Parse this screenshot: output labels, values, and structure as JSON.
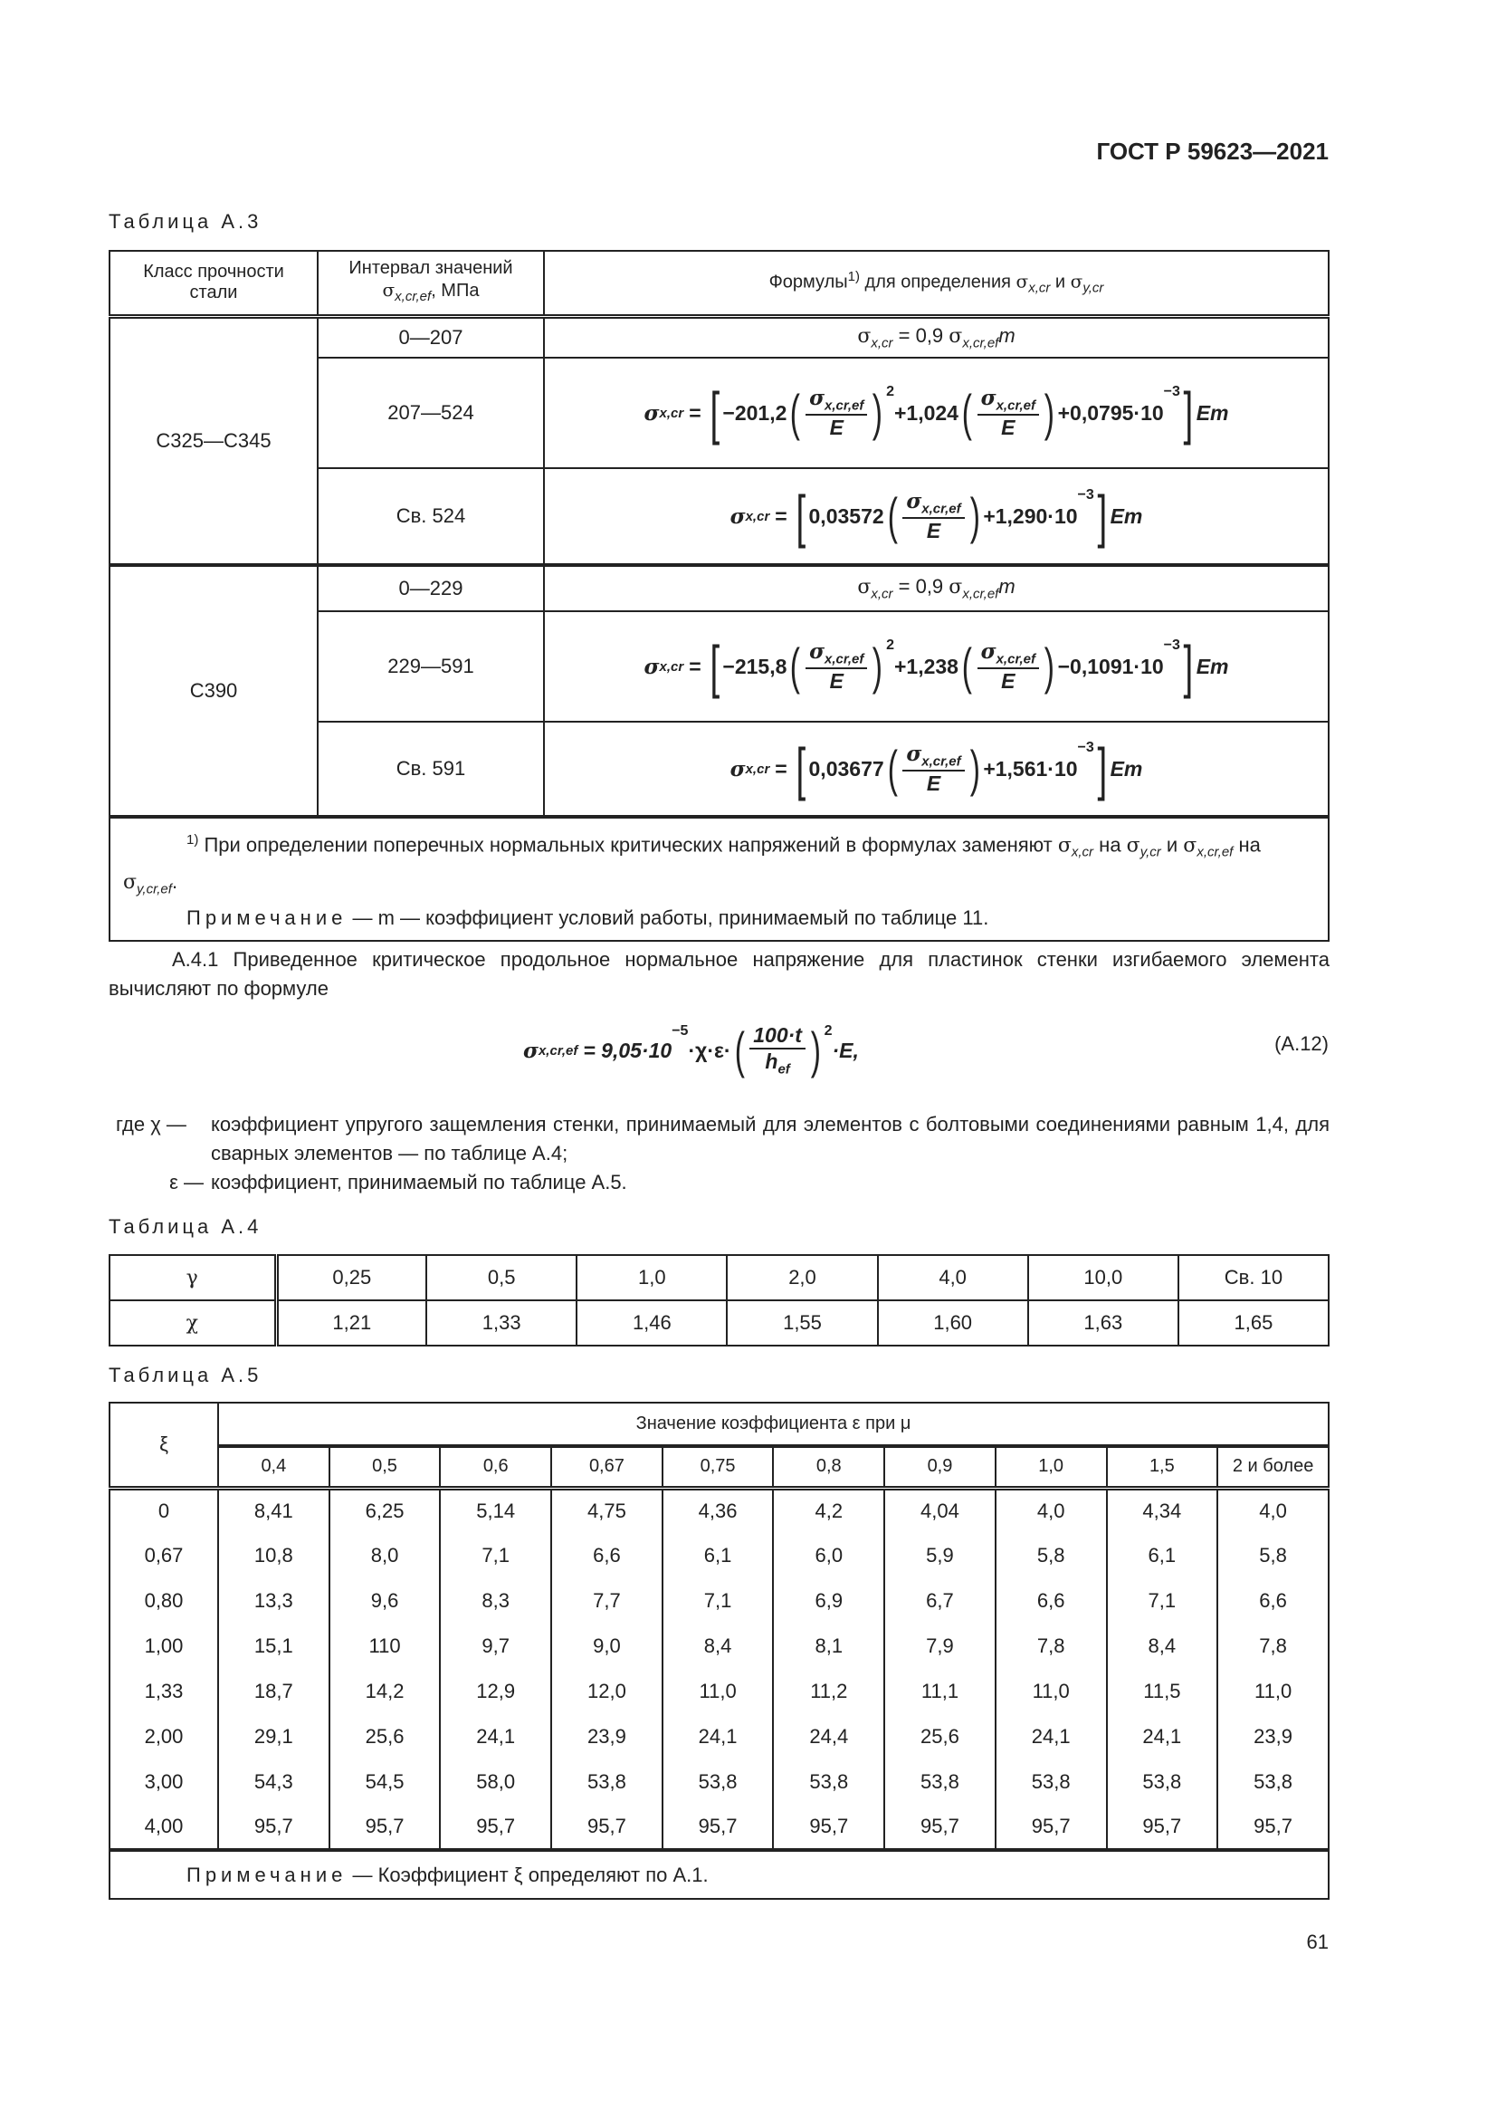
{
  "header": {
    "doc_code": "ГОСТ Р 59623—2021"
  },
  "table_a3": {
    "label": "Таблица А.3",
    "headers": {
      "col1": "Класс прочности стали",
      "col2_text": "Интервал значений",
      "col2_sym": "σ",
      "col2_sub": "x,cr,ef",
      "col2_unit": ", МПа",
      "col3_text": "Формулы",
      "col3_sup": "1)",
      "col3_mid": " для определения ",
      "col3_sym1_sub": "x,cr",
      "col3_and": " и ",
      "col3_sym2_sub": "y,cr"
    },
    "groups": [
      {
        "class": "С325—С345",
        "rows": [
          {
            "interval": "0—207",
            "formula": {
              "type": "simple",
              "text1": " = 0,9 ",
              "sub1": "x,cr",
              "sub2": "x,cr,ef",
              "tail": "m"
            }
          },
          {
            "interval": "207—524",
            "formula": {
              "type": "quad",
              "c1": "−201,2",
              "c2": "+1,024",
              "c3": "+0,0795·10",
              "exp": "−3",
              "tail": "Em"
            }
          },
          {
            "interval": "Св. 524",
            "formula": {
              "type": "lin",
              "c1": "0,03572",
              "c2": "+1,290·10",
              "exp": "−3",
              "tail": "Em"
            }
          }
        ]
      },
      {
        "class": "С390",
        "rows": [
          {
            "interval": "0—229",
            "formula": {
              "type": "simple",
              "text1": " = 0,9 ",
              "sub1": "x,cr",
              "sub2": "x,cr,ef",
              "tail": "m"
            }
          },
          {
            "interval": "229—591",
            "formula": {
              "type": "quad",
              "c1": "−215,8",
              "c2": "+1,238",
              "c3": "−0,1091·10",
              "exp": "−3",
              "tail": "Em"
            }
          },
          {
            "interval": "Св. 591",
            "formula": {
              "type": "lin",
              "c1": "0,03677",
              "c2": "+1,561·10",
              "exp": "−3",
              "tail": "Em"
            }
          }
        ]
      }
    ],
    "formula_common": {
      "sigma": "σ",
      "lhs_sub": "x,cr",
      "frac_sub": "x,cr,ef",
      "den": "E",
      "sq": "2",
      "eq": "="
    },
    "footnote": {
      "mark": "1)",
      "t1": " При определении поперечных нормальных критических напряжений в формулах заменяют ",
      "s1": "x,cr",
      "t2": " на ",
      "s2": "y,cr",
      "t3": " и ",
      "s3": "x,cr,ef",
      "t4": " на ",
      "s4": "y,cr,ef",
      "t5": "."
    },
    "note": {
      "label": "Примечание",
      "text": " — m — коэффициент условий работы, принимаемый по таблице 11."
    }
  },
  "section_a41": {
    "text": "А.4.1 Приведенное критическое продольное нормальное напряжение для пластинок стенки изгибаемого элемента вычисляют по формуле",
    "formula": {
      "lhs_sub": "x,cr,ef",
      "c": "= 9,05·10",
      "exp": "−5",
      "mid": "·χ·ε·",
      "num": "100·t",
      "den": "h",
      "den_sub": "ef",
      "sq": "2",
      "tail": "·E,"
    },
    "formula_number": "(А.12)",
    "where": [
      {
        "prefix": "где χ —",
        "text": "коэффициент упругого защемления стенки, принимаемый для элементов с болтовыми соединениями равным 1,4, для сварных элементов — по таблице А.4;"
      },
      {
        "prefix": "ε —",
        "text": "коэффициент, принимаемый по таблице А.5."
      }
    ]
  },
  "table_a4": {
    "label": "Таблица А.4",
    "rows": [
      {
        "head": "γ",
        "values": [
          "0,25",
          "0,5",
          "1,0",
          "2,0",
          "4,0",
          "10,0",
          "Св. 10"
        ]
      },
      {
        "head": "χ",
        "values": [
          "1,21",
          "1,33",
          "1,46",
          "1,55",
          "1,60",
          "1,63",
          "1,65"
        ]
      }
    ]
  },
  "table_a5": {
    "label": "Таблица А.5",
    "corner": "ξ",
    "group_header": "Значение коэффициента ε при μ",
    "mu": [
      "0,4",
      "0,5",
      "0,6",
      "0,67",
      "0,75",
      "0,8",
      "0,9",
      "1,0",
      "1,5",
      "2 и более"
    ],
    "rows": [
      {
        "xi": "0",
        "values": [
          "8,41",
          "6,25",
          "5,14",
          "4,75",
          "4,36",
          "4,2",
          "4,04",
          "4,0",
          "4,34",
          "4,0"
        ]
      },
      {
        "xi": "0,67",
        "values": [
          "10,8",
          "8,0",
          "7,1",
          "6,6",
          "6,1",
          "6,0",
          "5,9",
          "5,8",
          "6,1",
          "5,8"
        ]
      },
      {
        "xi": "0,80",
        "values": [
          "13,3",
          "9,6",
          "8,3",
          "7,7",
          "7,1",
          "6,9",
          "6,7",
          "6,6",
          "7,1",
          "6,6"
        ]
      },
      {
        "xi": "1,00",
        "values": [
          "15,1",
          "110",
          "9,7",
          "9,0",
          "8,4",
          "8,1",
          "7,9",
          "7,8",
          "8,4",
          "7,8"
        ]
      },
      {
        "xi": "1,33",
        "values": [
          "18,7",
          "14,2",
          "12,9",
          "12,0",
          "11,0",
          "11,2",
          "11,1",
          "11,0",
          "11,5",
          "11,0"
        ]
      },
      {
        "xi": "2,00",
        "values": [
          "29,1",
          "25,6",
          "24,1",
          "23,9",
          "24,1",
          "24,4",
          "25,6",
          "24,1",
          "24,1",
          "23,9"
        ]
      },
      {
        "xi": "3,00",
        "values": [
          "54,3",
          "54,5",
          "58,0",
          "53,8",
          "53,8",
          "53,8",
          "53,8",
          "53,8",
          "53,8",
          "53,8"
        ]
      },
      {
        "xi": "4,00",
        "values": [
          "95,7",
          "95,7",
          "95,7",
          "95,7",
          "95,7",
          "95,7",
          "95,7",
          "95,7",
          "95,7",
          "95,7"
        ]
      }
    ],
    "note": {
      "label": "Примечание",
      "text": " — Коэффициент ξ определяют по А.1."
    }
  },
  "page_number": "61"
}
